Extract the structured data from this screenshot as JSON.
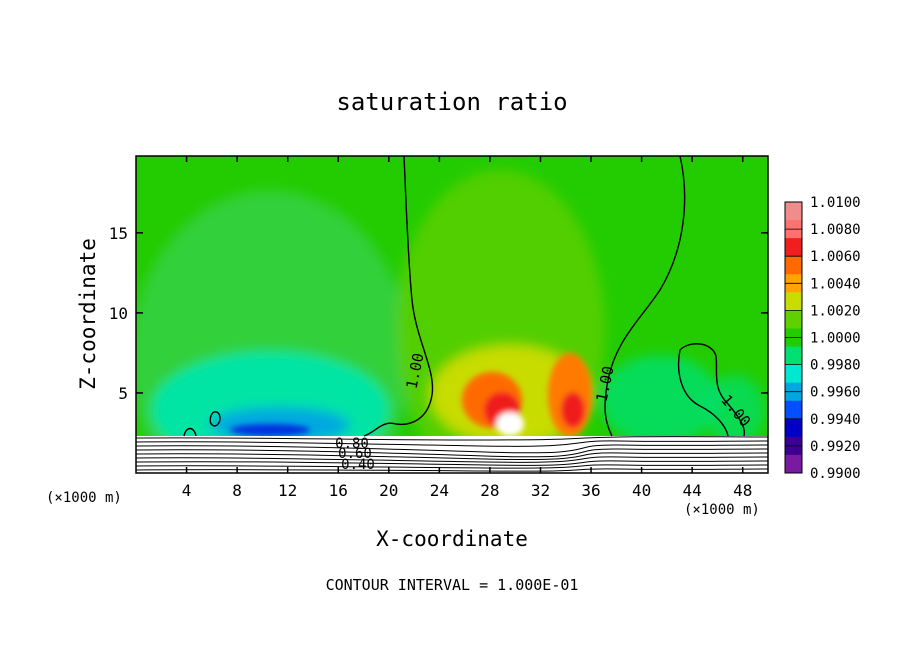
{
  "chart_data": {
    "type": "heatmap",
    "title": "saturation ratio",
    "xlabel": "X-coordinate",
    "ylabel": "Z-coordinate",
    "x_unit_label": "(×1000 m)",
    "xlim": [
      0,
      50
    ],
    "ylim": [
      0,
      19.8
    ],
    "x_ticks": [
      4,
      8,
      12,
      16,
      20,
      24,
      28,
      32,
      36,
      40,
      44,
      48
    ],
    "y_ticks": [
      5,
      10,
      15
    ],
    "colorbar": {
      "levels": [
        "1.0100",
        "1.0080",
        "1.0060",
        "1.0040",
        "1.0020",
        "1.0000",
        "0.9980",
        "0.9960",
        "0.9940",
        "0.9920",
        "0.9900"
      ],
      "colors": [
        "#f08c8c",
        "#ff7070",
        "#f01e1e",
        "#ff6a00",
        "#ffa400",
        "#c8dc00",
        "#5fd000",
        "#22cc00",
        "#00e070",
        "#00e8d0",
        "#00a8e0",
        "#0050ff",
        "#0000c8",
        "#3c0090",
        "#7a1aa0"
      ]
    },
    "contour_labels": [
      "1.00",
      "1.00",
      "1.00",
      "0.80",
      "0.60",
      "0.40"
    ],
    "contour_interval_text": "CONTOUR INTERVAL = 1.000E-01"
  }
}
